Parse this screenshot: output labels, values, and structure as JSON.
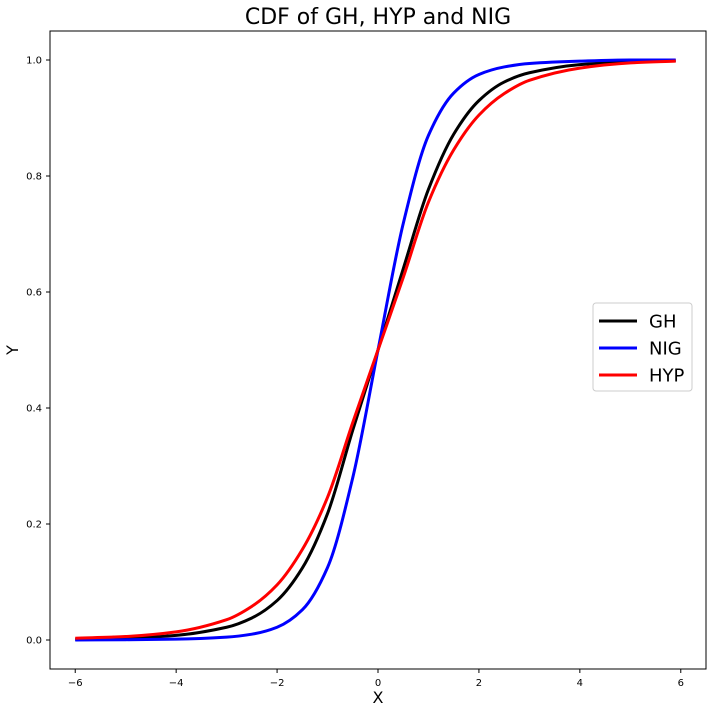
{
  "chart_data": {
    "type": "line",
    "title": "CDF of GH, HYP and NIG",
    "xlabel": "X",
    "ylabel": "Y",
    "xlim": [
      -6.5,
      6.5
    ],
    "ylim": [
      -0.05,
      1.05
    ],
    "xticks": [
      -6,
      -4,
      -2,
      0,
      2,
      4,
      6
    ],
    "xtick_labels": [
      "−6",
      "−4",
      "−2",
      "0",
      "2",
      "4",
      "6"
    ],
    "yticks": [
      0.0,
      0.2,
      0.4,
      0.6,
      0.8,
      1.0
    ],
    "ytick_labels": [
      "0.0",
      "0.2",
      "0.4",
      "0.6",
      "0.8",
      "1.0"
    ],
    "grid": false,
    "legend_position": "center-right",
    "series": [
      {
        "name": "GH",
        "color": "#000000",
        "x": [
          -6,
          -5,
          -4,
          -3,
          -2.5,
          -2,
          -1.5,
          -1,
          -0.5,
          0,
          0.5,
          1,
          1.5,
          2,
          2.5,
          3,
          4,
          5,
          5.9
        ],
        "y": [
          0.001,
          0.003,
          0.008,
          0.022,
          0.038,
          0.068,
          0.124,
          0.218,
          0.362,
          0.5,
          0.64,
          0.777,
          0.872,
          0.93,
          0.962,
          0.978,
          0.992,
          0.997,
          0.999
        ]
      },
      {
        "name": "NIG",
        "color": "#0000ff",
        "x": [
          -6,
          -5,
          -4,
          -3,
          -2.5,
          -2,
          -1.5,
          -1,
          -0.5,
          0,
          0.5,
          1,
          1.5,
          2,
          2.5,
          3,
          4,
          5,
          5.9
        ],
        "y": [
          0.0,
          0.0005,
          0.0015,
          0.005,
          0.01,
          0.022,
          0.052,
          0.125,
          0.28,
          0.5,
          0.718,
          0.87,
          0.943,
          0.975,
          0.988,
          0.994,
          0.998,
          1.0,
          1.0
        ]
      },
      {
        "name": "HYP",
        "color": "#ff0000",
        "x": [
          -6,
          -5,
          -4,
          -3,
          -2.5,
          -2,
          -1.5,
          -1,
          -0.5,
          0,
          0.5,
          1,
          1.5,
          2,
          2.5,
          3,
          4,
          5,
          5.9
        ],
        "y": [
          0.003,
          0.006,
          0.014,
          0.035,
          0.058,
          0.095,
          0.156,
          0.246,
          0.375,
          0.5,
          0.625,
          0.755,
          0.845,
          0.905,
          0.942,
          0.965,
          0.986,
          0.995,
          0.998
        ]
      }
    ]
  }
}
